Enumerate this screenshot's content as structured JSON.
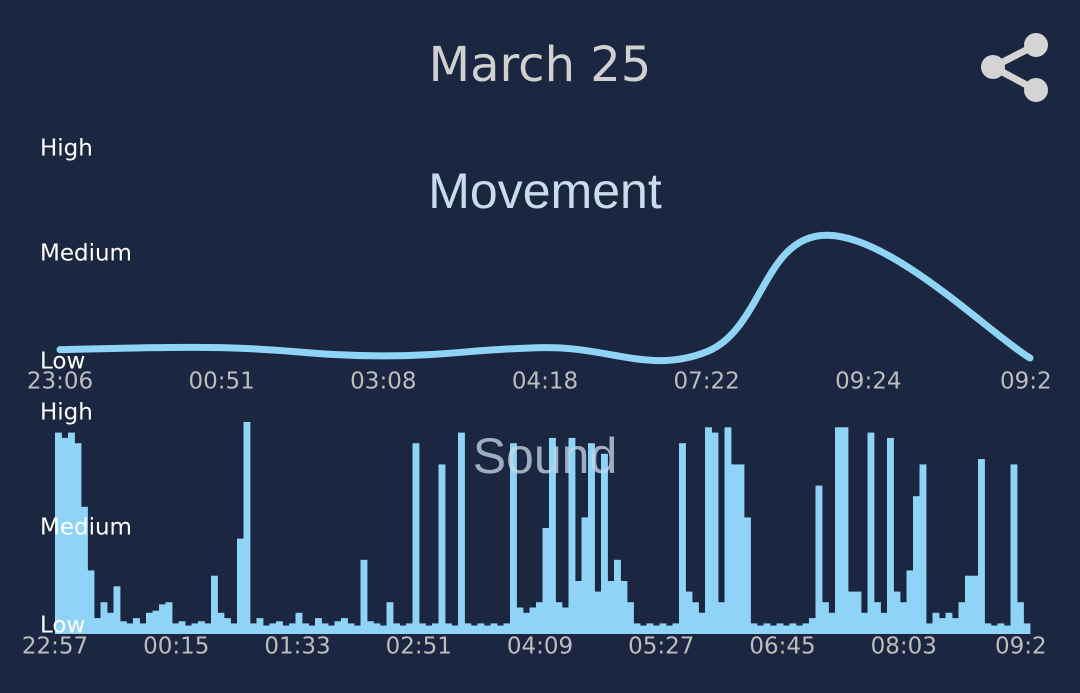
{
  "header": {
    "title": "March 25"
  },
  "chart_data": [
    {
      "type": "line",
      "title": "Movement",
      "ylim": [
        0,
        2
      ],
      "yticks": [
        {
          "value": 0,
          "label": "Low"
        },
        {
          "value": 1,
          "label": "Medium"
        },
        {
          "value": 2,
          "label": "High"
        }
      ],
      "xlim": [
        0,
        6
      ],
      "xticks": [
        {
          "value": 0,
          "label": "23:06"
        },
        {
          "value": 1,
          "label": "00:51"
        },
        {
          "value": 2,
          "label": "03:08"
        },
        {
          "value": 3,
          "label": "04:18"
        },
        {
          "value": 4,
          "label": "07:22"
        },
        {
          "value": 5,
          "label": "09:24"
        },
        {
          "value": 6,
          "label": "09:2"
        }
      ],
      "color": "#8fd3f7",
      "x": [
        0,
        1,
        2,
        3,
        4,
        4.75,
        6
      ],
      "values": [
        0.08,
        0.1,
        0.02,
        0.1,
        0.06,
        1.18,
        0
      ]
    },
    {
      "type": "bar",
      "title": "Sound",
      "ylim": [
        0,
        2
      ],
      "yticks": [
        {
          "value": 0,
          "label": "Low"
        },
        {
          "value": 1,
          "label": "Medium"
        },
        {
          "value": 2,
          "label": "High"
        }
      ],
      "xlim": [
        0,
        8
      ],
      "xticks": [
        {
          "value": 0,
          "label": "22:57"
        },
        {
          "value": 1,
          "label": "00:15"
        },
        {
          "value": 2,
          "label": "01:33"
        },
        {
          "value": 3,
          "label": "02:51"
        },
        {
          "value": 4,
          "label": "04:09"
        },
        {
          "value": 5,
          "label": "05:27"
        },
        {
          "value": 6,
          "label": "06:45"
        },
        {
          "value": 7,
          "label": "08:03"
        },
        {
          "value": 8,
          "label": "09:2"
        }
      ],
      "color": "#8fd3f7",
      "values": [
        1.9,
        1.85,
        1.9,
        1.8,
        1.2,
        0.6,
        0.15,
        0.3,
        0.2,
        0.45,
        0.12,
        0.1,
        0.15,
        0.1,
        0.2,
        0.22,
        0.28,
        0.3,
        0.1,
        0.12,
        0.08,
        0.1,
        0.12,
        0.1,
        0.55,
        0.2,
        0.15,
        0.1,
        0.9,
        2.0,
        0.1,
        0.15,
        0.08,
        0.1,
        0.12,
        0.08,
        0.1,
        0.2,
        0.1,
        0.08,
        0.15,
        0.1,
        0.08,
        0.12,
        0.15,
        0.1,
        0.08,
        0.7,
        0.12,
        0.1,
        0.08,
        0.3,
        0.1,
        0.08,
        0.1,
        1.8,
        0.1,
        0.08,
        0.1,
        1.6,
        0.1,
        0.08,
        1.9,
        0.1,
        0.08,
        0.1,
        0.08,
        0.1,
        0.08,
        0.1,
        1.8,
        0.25,
        0.2,
        0.25,
        0.3,
        1.0,
        1.85,
        0.3,
        0.25,
        1.85,
        0.5,
        1.1,
        1.8,
        0.4,
        1.7,
        0.5,
        0.7,
        0.5,
        0.3,
        0.1,
        0.08,
        0.1,
        0.08,
        0.1,
        0.08,
        0.1,
        1.8,
        0.4,
        0.3,
        0.2,
        1.95,
        1.9,
        0.3,
        1.95,
        1.6,
        1.6,
        1.1,
        0.1,
        0.08,
        0.1,
        0.08,
        0.1,
        0.08,
        0.1,
        0.08,
        0.1,
        0.15,
        1.4,
        0.3,
        0.2,
        1.95,
        1.95,
        0.4,
        0.4,
        0.2,
        1.9,
        0.3,
        0.2,
        1.85,
        0.4,
        0.3,
        0.6,
        1.3,
        1.6,
        0.1,
        0.2,
        0.15,
        0.2,
        0.15,
        0.3,
        0.55,
        0.55,
        1.65,
        0.1,
        0.08,
        0.1,
        0.08,
        1.6,
        0.3,
        0.1
      ]
    }
  ]
}
